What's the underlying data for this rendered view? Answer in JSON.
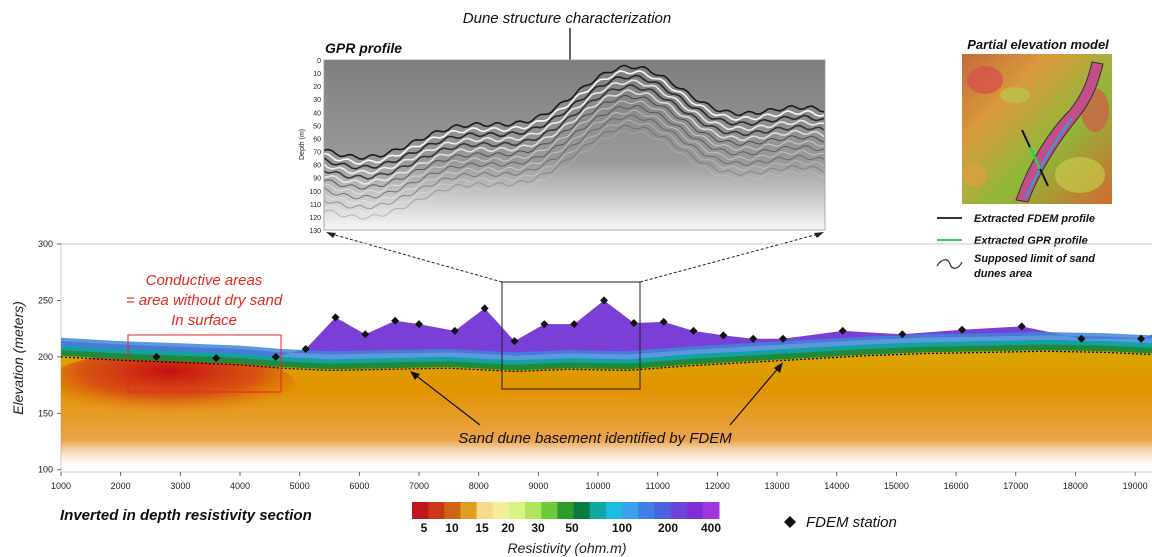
{
  "annotations": {
    "dune_structure": "Dune structure characterization",
    "gpr_title": "GPR profile",
    "elevation_model_title": "Partial elevation model",
    "conductive_lines": [
      "Conductive areas",
      "= area without dry sand",
      "In surface"
    ],
    "basement": "Sand dune basement identified by FDEM",
    "section_title": "Inverted in depth resistivity section"
  },
  "legend": {
    "fdem_profile": "Extracted FDEM profile",
    "gpr_profile": "Extracted GPR profile",
    "dunes_limit_lines": [
      "Supposed limit of sand",
      "dunes area"
    ],
    "fdem_station": "FDEM station"
  },
  "gpr": {
    "depth_label": "Depth (m)",
    "depth_ticks": [
      "0",
      "10",
      "20",
      "30",
      "40",
      "50",
      "60",
      "70",
      "80",
      "90",
      "100",
      "110",
      "120",
      "130"
    ]
  },
  "section": {
    "ylabel": "Elevation (meters)",
    "x_ticks": [
      1000,
      2000,
      3000,
      4000,
      5000,
      6000,
      7000,
      8000,
      9000,
      10000,
      11000,
      12000,
      13000,
      14000,
      15000,
      16000,
      17000,
      18000,
      19000
    ],
    "y_ticks": [
      100,
      150,
      200,
      250,
      300
    ],
    "xlim": [
      1000,
      19300
    ],
    "ylim": [
      98,
      300
    ],
    "stations": [
      [
        2600,
        200
      ],
      [
        3600,
        199
      ],
      [
        4600,
        200
      ],
      [
        5100,
        207
      ],
      [
        5600,
        235
      ],
      [
        6100,
        220
      ],
      [
        6600,
        232
      ],
      [
        7000,
        229
      ],
      [
        7600,
        223
      ],
      [
        8100,
        243
      ],
      [
        8600,
        214
      ],
      [
        9100,
        229
      ],
      [
        9600,
        229
      ],
      [
        10100,
        250
      ],
      [
        10600,
        230
      ],
      [
        11100,
        231
      ],
      [
        11600,
        223
      ],
      [
        12100,
        219
      ],
      [
        12600,
        216
      ],
      [
        13100,
        216
      ],
      [
        14100,
        223
      ],
      [
        15100,
        220
      ],
      [
        16100,
        224
      ],
      [
        17100,
        227
      ],
      [
        18100,
        216
      ],
      [
        19100,
        216
      ]
    ]
  },
  "colorbar": {
    "title": "Resistivity (ohm.m)",
    "labels": [
      "5",
      "10",
      "15",
      "20",
      "30",
      "50",
      "100",
      "200",
      "400"
    ],
    "colors": [
      "#c1141b",
      "#cc3817",
      "#cf6412",
      "#df9e21",
      "#f7d88c",
      "#f4ee9a",
      "#d9f286",
      "#aee65d",
      "#6fca3b",
      "#2f9b2c",
      "#0a7a45",
      "#14a6a2",
      "#1dbde0",
      "#3aa1ec",
      "#3f7fe5",
      "#4863dd",
      "#6b44d8",
      "#7f2fd3",
      "#a436e0"
    ]
  }
}
